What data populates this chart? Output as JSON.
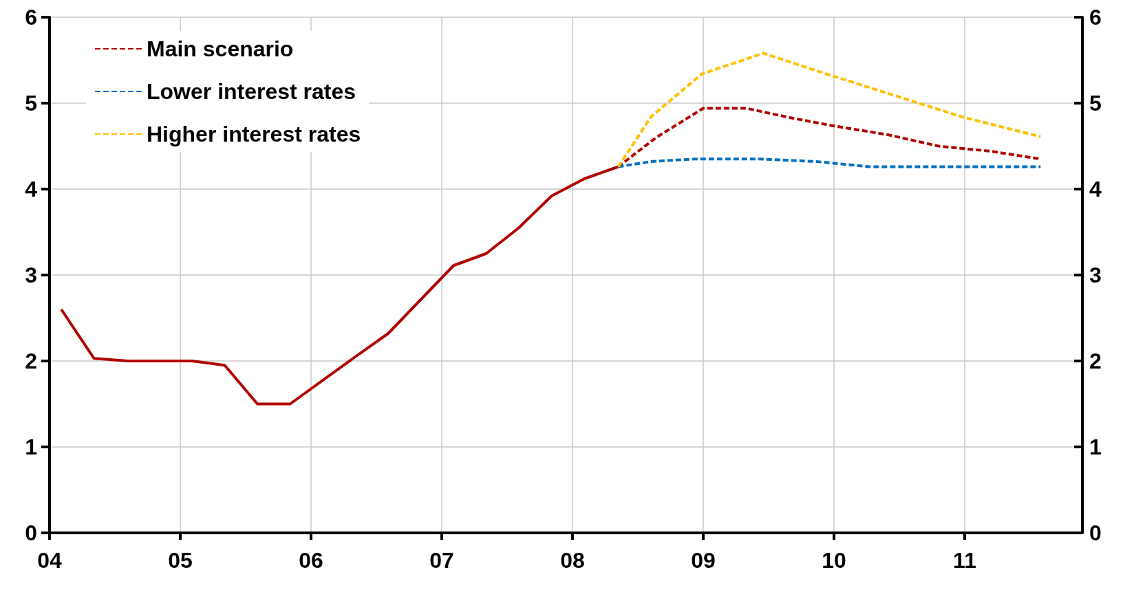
{
  "chart_data": {
    "type": "line",
    "x": [
      2004.09,
      2004.34,
      2004.6,
      2004.84,
      2005.09,
      2005.34,
      2005.59,
      2005.84,
      2006.34,
      2006.59,
      2007.09,
      2007.34,
      2007.59,
      2007.84,
      2008.09,
      2008.35
    ],
    "series": [
      {
        "color": "#b00000",
        "line_style": "solid",
        "values": [
          2.6,
          2.03,
          2.0,
          2.0,
          2.0,
          1.95,
          1.5,
          1.5,
          2.05,
          2.32,
          3.11,
          3.25,
          3.55,
          3.92,
          4.12,
          4.26
        ]
      },
      {
        "name": "Main scenario",
        "color": "#b00000",
        "line_style": "dashed",
        "x": [
          2008.35,
          2008.64,
          2009.0,
          2009.33,
          2009.7,
          2009.98,
          2010.42,
          2010.8,
          2011.2,
          2011.58
        ],
        "values": [
          4.26,
          4.6,
          4.94,
          4.94,
          4.82,
          4.74,
          4.63,
          4.5,
          4.44,
          4.35
        ]
      },
      {
        "name": "Lower interest rates",
        "color": "#0070c0",
        "line_style": "dashed",
        "x": [
          2008.35,
          2008.6,
          2008.93,
          2009.43,
          2009.87,
          2010.27,
          2010.9,
          2011.58
        ],
        "values": [
          4.26,
          4.32,
          4.35,
          4.35,
          4.32,
          4.26,
          4.26,
          4.26
        ]
      },
      {
        "name": "Higher interest rates",
        "color": "#ffc000",
        "line_style": "dashed",
        "x": [
          2008.35,
          2008.6,
          2008.99,
          2009.46,
          2009.94,
          2010.42,
          2010.98,
          2011.58
        ],
        "values": [
          4.26,
          4.84,
          5.34,
          5.58,
          5.34,
          5.11,
          4.84,
          4.61
        ]
      }
    ],
    "xlim": [
      2004,
      2011.9
    ],
    "xticks": [
      {
        "value": 2004,
        "label": "04"
      },
      {
        "value": 2005,
        "label": "05"
      },
      {
        "value": 2006,
        "label": "06"
      },
      {
        "value": 2007,
        "label": "07"
      },
      {
        "value": 2008,
        "label": "08"
      },
      {
        "value": 2009,
        "label": "09"
      },
      {
        "value": 2010,
        "label": "10"
      },
      {
        "value": 2011,
        "label": "11"
      }
    ],
    "ylim": [
      0,
      6
    ],
    "yticks": [
      0,
      1,
      2,
      3,
      4,
      5,
      6
    ],
    "y2lim": [
      0,
      6
    ],
    "y2ticks": [
      0,
      1,
      2,
      3,
      4,
      5,
      6
    ],
    "grid": true,
    "legend": "top left",
    "marker": "none"
  }
}
